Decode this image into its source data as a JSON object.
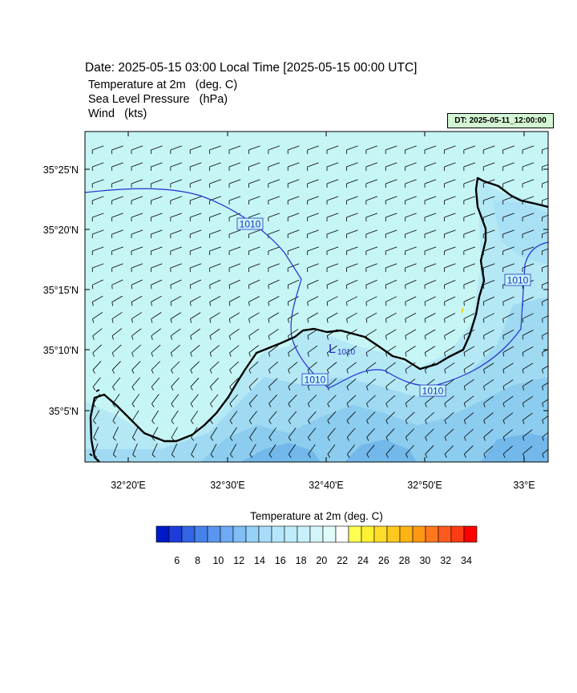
{
  "header": {
    "title": "Date: 2025-05-15  03:00 Local Time [2025-05-15  00:00 UTC]",
    "fields": [
      {
        "name": "Temperature at 2m",
        "unit": "(deg. C)"
      },
      {
        "name": "Sea Level Pressure",
        "unit": "(hPa)"
      },
      {
        "name": "Wind",
        "unit": "(kts)"
      }
    ],
    "dt_label": "DT: 2025-05-11_12:00:00"
  },
  "map": {
    "lat_labels": [
      "35°25'N",
      "35°20'N",
      "35°15'N",
      "35°10'N",
      "35°5'N"
    ],
    "lon_labels": [
      "32°20'E",
      "32°30'E",
      "32°40'E",
      "32°50'E",
      "33°E"
    ],
    "isobar_labels": [
      "1010",
      "1010",
      "1010",
      "1010"
    ],
    "low_marker": {
      "letter": "L",
      "value": "1010"
    },
    "colors": {
      "sea": "#c6f5f5",
      "land_light": "#b4e8f5",
      "land_mid": "#8fd0f0",
      "land_dark": "#6bb4ec",
      "coast": "#000000",
      "isobar": "#2030d0",
      "wind": "#000000"
    }
  },
  "legend": {
    "title": "Temperature at 2m  (deg. C)",
    "colors": [
      "#0019c8",
      "#1e3cdc",
      "#3264e6",
      "#4682eb",
      "#5a96f0",
      "#6eaaf5",
      "#82bef5",
      "#96d2f8",
      "#aadcfa",
      "#b4e6fa",
      "#beecfa",
      "#c8f0fa",
      "#d2f5fa",
      "#e1fafa",
      "#ffffff",
      "#ffff50",
      "#fff032",
      "#ffdc28",
      "#ffc81e",
      "#ffb414",
      "#ff9614",
      "#ff781e",
      "#ff5a1e",
      "#ff3c14",
      "#ff0000"
    ],
    "tick_labels": [
      "6",
      "8",
      "10",
      "12",
      "14",
      "16",
      "18",
      "20",
      "22",
      "24",
      "26",
      "28",
      "30",
      "32",
      "34"
    ]
  }
}
